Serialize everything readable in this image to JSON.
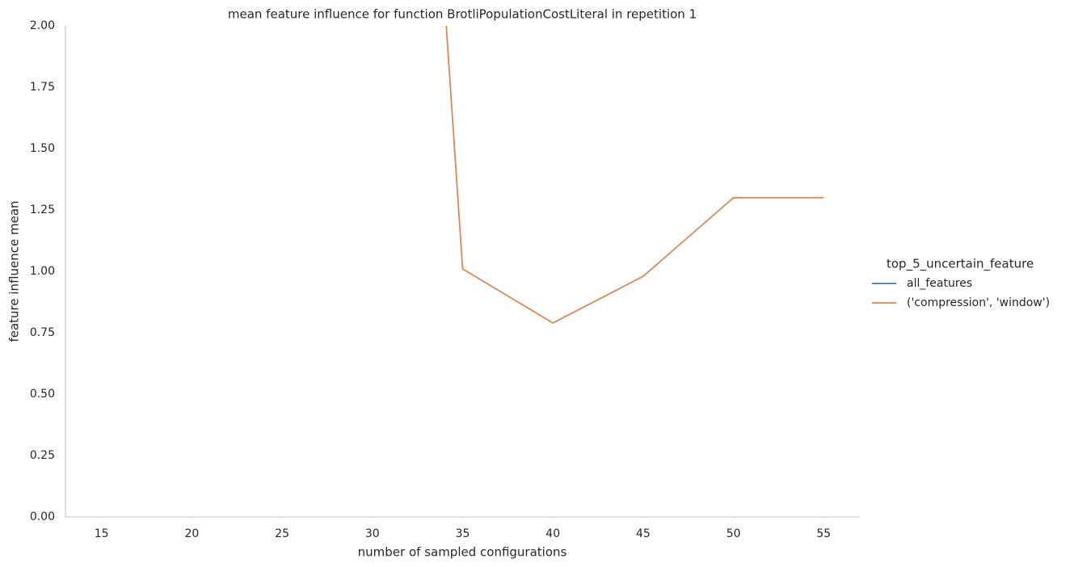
{
  "chart_data": {
    "type": "line",
    "title": "mean feature influence for function BrotliPopulationCostLiteral in repetition 1",
    "x_label": "number of sampled configurations",
    "y_label": "feature influence mean",
    "legend_title": "top_5_uncertain_feature",
    "x": [
      34,
      35,
      40,
      45,
      50,
      55
    ],
    "series": [
      {
        "name": "all_features",
        "color": "#4c72b0",
        "values": [
          null,
          null,
          null,
          null,
          null,
          null
        ]
      },
      {
        "name": "('compression', 'window')",
        "color": "#dd8452",
        "values": [
          2.1,
          1.01,
          0.79,
          0.98,
          1.3,
          1.3
        ]
      }
    ],
    "xlim": [
      13,
      57
    ],
    "xticks": [
      15,
      20,
      25,
      30,
      35,
      40,
      45,
      50,
      55
    ],
    "ylim": [
      0,
      2
    ],
    "yticks": [
      {
        "value": 0,
        "label": "0.00"
      },
      {
        "value": 0.25,
        "label": "0.25"
      },
      {
        "value": 0.5,
        "label": "0.50"
      },
      {
        "value": 0.75,
        "label": "0.75"
      },
      {
        "value": 1,
        "label": "1.00"
      },
      {
        "value": 1.25,
        "label": "1.25"
      },
      {
        "value": 1.5,
        "label": "1.50"
      },
      {
        "value": 1.75,
        "label": "1.75"
      },
      {
        "value": 2,
        "label": "2.00"
      }
    ],
    "legend": "right"
  }
}
